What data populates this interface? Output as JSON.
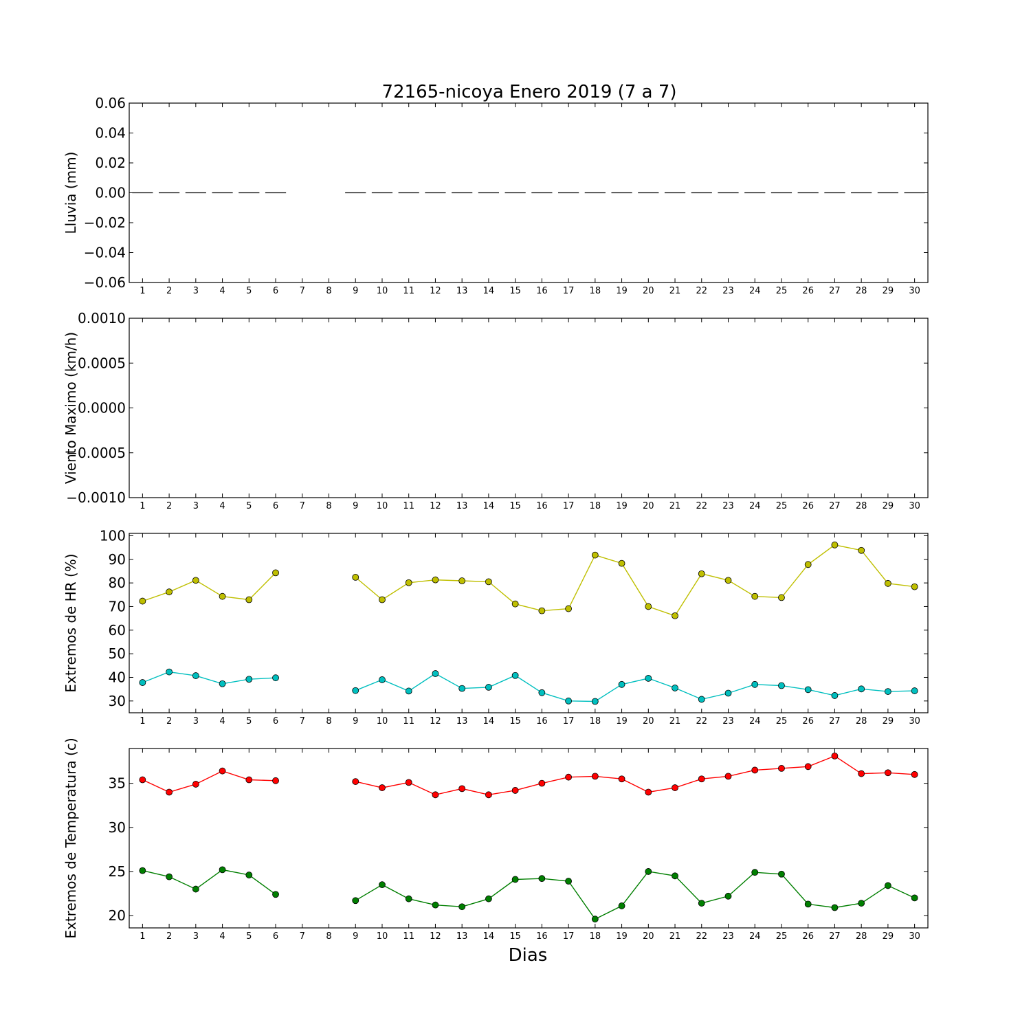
{
  "title": "72165-nicoya Enero 2019  (7 a 7)",
  "xlabel": "Dias",
  "chart_data": [
    {
      "type": "line",
      "name": "lluvia",
      "ylabel": "Lluvia (mm)",
      "ylim": [
        -0.06,
        0.06
      ],
      "yticks": [
        0.06,
        0.04,
        0.02,
        0.0,
        -0.02,
        -0.04,
        -0.06
      ],
      "ytick_labels": [
        "0.06",
        "0.04",
        "0.02",
        "0.00",
        "−0.02",
        "−0.04",
        "−0.06"
      ],
      "xticks": [
        1,
        2,
        3,
        4,
        5,
        6,
        7,
        8,
        9,
        10,
        11,
        12,
        13,
        14,
        15,
        16,
        17,
        18,
        19,
        20,
        21,
        22,
        23,
        24,
        25,
        26,
        27,
        28,
        29,
        30
      ],
      "line_style": "dashed",
      "series": [
        {
          "color": "#000000",
          "x": [
            1,
            2,
            3,
            4,
            5,
            6,
            7,
            8,
            9,
            10,
            11,
            12,
            13,
            14,
            15,
            16,
            17,
            18,
            19,
            20,
            21,
            22,
            23,
            24,
            25,
            26,
            27,
            28,
            29,
            30
          ],
          "y": [
            0,
            0,
            0,
            0,
            0,
            0,
            null,
            null,
            0,
            0,
            0,
            0,
            0,
            0,
            0,
            0,
            0,
            0,
            0,
            0,
            0,
            0,
            0,
            0,
            0,
            0,
            0,
            0,
            0,
            0
          ]
        }
      ]
    },
    {
      "type": "line",
      "name": "viento",
      "ylabel": "Viento Maximo (km/h)",
      "ylim": [
        -0.001,
        0.001
      ],
      "yticks": [
        0.001,
        0.0005,
        0.0,
        -0.0005,
        -0.001
      ],
      "ytick_labels": [
        "0.0010",
        "0.0005",
        "0.0000",
        "−0.0005",
        "−0.0010"
      ],
      "xticks": [
        1,
        2,
        3,
        4,
        5,
        6,
        7,
        8,
        9,
        10,
        11,
        12,
        13,
        14,
        15,
        16,
        17,
        18,
        19,
        20,
        21,
        22,
        23,
        24,
        25,
        26,
        27,
        28,
        29,
        30
      ],
      "series": []
    },
    {
      "type": "line",
      "name": "humedad",
      "ylabel": "Extremos de HR (%)",
      "ylim": [
        25,
        101
      ],
      "yticks": [
        100,
        90,
        80,
        70,
        60,
        50,
        40,
        30
      ],
      "ytick_labels": [
        "100",
        "90",
        "80",
        "70",
        "60",
        "50",
        "40",
        "30"
      ],
      "xticks": [
        1,
        2,
        3,
        4,
        5,
        6,
        7,
        8,
        9,
        10,
        11,
        12,
        13,
        14,
        15,
        16,
        17,
        18,
        19,
        20,
        21,
        22,
        23,
        24,
        25,
        26,
        27,
        28,
        29,
        30
      ],
      "series": [
        {
          "color": "#bfbf00",
          "x": [
            1,
            2,
            3,
            4,
            5,
            6,
            7,
            8,
            9,
            10,
            11,
            12,
            13,
            14,
            15,
            16,
            17,
            18,
            19,
            20,
            21,
            22,
            23,
            24,
            25,
            26,
            27,
            28,
            29,
            30
          ],
          "y": [
            72.3,
            76.2,
            81.1,
            74.3,
            72.9,
            84.3,
            null,
            null,
            82.4,
            72.9,
            80.1,
            81.3,
            80.9,
            80.5,
            71.1,
            68.2,
            69.1,
            91.8,
            88.3,
            70.0,
            66.1,
            83.9,
            81.1,
            74.3,
            73.8,
            87.8,
            96.1,
            93.8,
            79.8,
            78.4
          ]
        },
        {
          "color": "#00bfbf",
          "x": [
            1,
            2,
            3,
            4,
            5,
            6,
            7,
            8,
            9,
            10,
            11,
            12,
            13,
            14,
            15,
            16,
            17,
            18,
            19,
            20,
            21,
            22,
            23,
            24,
            25,
            26,
            27,
            28,
            29,
            30
          ],
          "y": [
            37.8,
            42.3,
            40.7,
            37.3,
            39.2,
            39.8,
            null,
            null,
            34.4,
            39.0,
            34.2,
            41.6,
            35.3,
            35.8,
            40.8,
            33.5,
            30.0,
            29.8,
            37.0,
            39.6,
            35.5,
            30.7,
            33.3,
            37.0,
            36.5,
            34.8,
            32.3,
            35.1,
            34.0,
            34.3
          ]
        }
      ]
    },
    {
      "type": "line",
      "name": "temperatura",
      "ylabel": "Extremos de Temperatura (c)",
      "ylim": [
        18.6,
        38.95
      ],
      "yticks": [
        35,
        30,
        25,
        20
      ],
      "ytick_labels": [
        "35",
        "30",
        "25",
        "20"
      ],
      "xticks": [
        1,
        2,
        3,
        4,
        5,
        6,
        7,
        8,
        9,
        10,
        11,
        12,
        13,
        14,
        15,
        16,
        17,
        18,
        19,
        20,
        21,
        22,
        23,
        24,
        25,
        26,
        27,
        28,
        29,
        30
      ],
      "series": [
        {
          "color": "#ff0000",
          "x": [
            1,
            2,
            3,
            4,
            5,
            6,
            7,
            8,
            9,
            10,
            11,
            12,
            13,
            14,
            15,
            16,
            17,
            18,
            19,
            20,
            21,
            22,
            23,
            24,
            25,
            26,
            27,
            28,
            29,
            30
          ],
          "y": [
            35.4,
            34.0,
            34.9,
            36.4,
            35.4,
            35.3,
            null,
            null,
            35.2,
            34.5,
            35.1,
            33.7,
            34.4,
            33.7,
            34.2,
            35.0,
            35.7,
            35.8,
            35.5,
            34.0,
            34.5,
            35.5,
            35.8,
            36.5,
            36.7,
            36.9,
            38.1,
            36.1,
            36.2,
            36.0
          ]
        },
        {
          "color": "#007f00",
          "x": [
            1,
            2,
            3,
            4,
            5,
            6,
            7,
            8,
            9,
            10,
            11,
            12,
            13,
            14,
            15,
            16,
            17,
            18,
            19,
            20,
            21,
            22,
            23,
            24,
            25,
            26,
            27,
            28,
            29,
            30
          ],
          "y": [
            25.1,
            24.4,
            23.0,
            25.2,
            24.6,
            22.4,
            null,
            null,
            21.7,
            23.5,
            21.9,
            21.2,
            21.0,
            21.9,
            24.1,
            24.2,
            23.9,
            19.6,
            21.1,
            25.0,
            24.5,
            21.4,
            22.2,
            24.9,
            24.7,
            21.3,
            20.9,
            21.4,
            23.4,
            22.0
          ]
        }
      ]
    }
  ]
}
